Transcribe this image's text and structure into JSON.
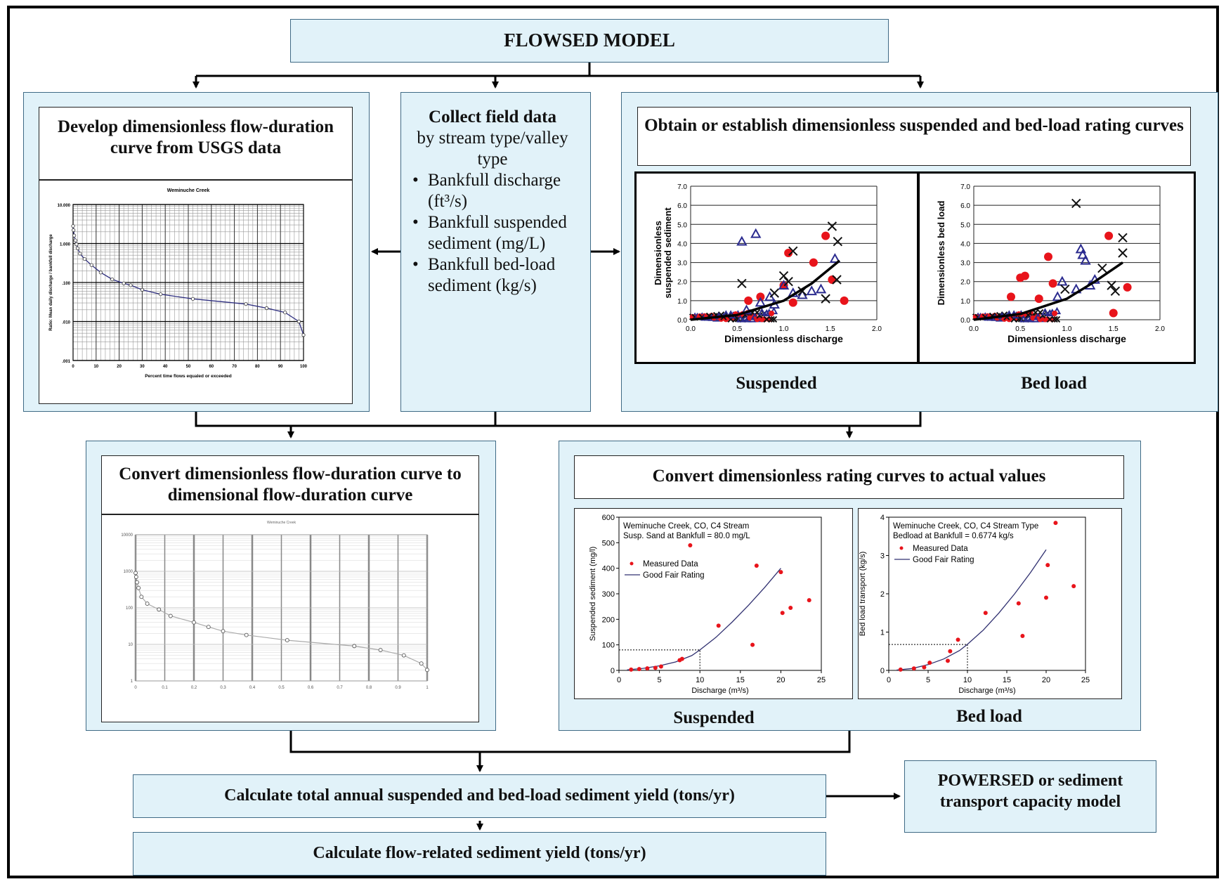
{
  "model_title": "FLOWSED MODEL",
  "flow_box": {
    "title": "Develop dimensionless flow-duration curve from USGS data"
  },
  "collect_box": {
    "heading": "Collect field data",
    "subheading": "by stream type/valley type",
    "items": [
      "Bankfull discharge (ft³/s)",
      "Bankfull suspended sediment (mg/L)",
      "Bankfull bed-load sediment (kg/s)"
    ]
  },
  "rating_box": {
    "title": "Obtain or establish dimensionless suspended and bed-load rating curves"
  },
  "convert_flow_box": {
    "title": "Convert dimensionless flow-duration curve to dimensional flow-duration curve"
  },
  "convert_rating_box": {
    "title": "Convert dimensionless rating curves to actual values"
  },
  "labels": {
    "suspended": "Suspended",
    "bed_load": "Bed load"
  },
  "calc_total": "Calculate total annual suspended and bed-load sediment yield (tons/yr)",
  "calc_flow": "Calculate flow-related sediment yield (tons/yr)",
  "powersed": "POWERSED or sediment transport capacity model",
  "chart_data": [
    {
      "type": "line",
      "title": "Weminuche Creek",
      "xlabel": "Percent time flows equaled or exceeded",
      "ylabel": "Ratio: Mean daily discharge / bankfull discharge",
      "yscale": "log",
      "ylim": [
        0.001,
        10
      ],
      "xlim": [
        0,
        100
      ],
      "y_tick_labels": [
        "10.000",
        "1.000",
        ".100",
        ".010",
        ".001"
      ],
      "x_tick_labels": [
        "0",
        "10",
        "20",
        "30",
        "40",
        "50",
        "60",
        "70",
        "80",
        "90",
        "100"
      ],
      "x": [
        0,
        0.2,
        0.5,
        1,
        1.5,
        2,
        3,
        5,
        8,
        12,
        17,
        22,
        25,
        30,
        38,
        52,
        75,
        84,
        92,
        98,
        100
      ],
      "y": [
        2.8,
        2.2,
        1.6,
        1.2,
        0.95,
        0.75,
        0.55,
        0.4,
        0.28,
        0.18,
        0.12,
        0.095,
        0.085,
        0.065,
        0.05,
        0.038,
        0.028,
        0.022,
        0.017,
        0.01,
        0.0045
      ]
    },
    {
      "type": "scatter",
      "xlabel": "Dimensionless discharge",
      "ylabel": "Dimensionless suspended sediment",
      "xlim": [
        0,
        2
      ],
      "ylim": [
        0,
        7
      ],
      "x_tick_labels": [
        "0.0",
        "0.5",
        "1.0",
        "1.5",
        "2.0"
      ],
      "y_tick_labels": [
        "0.0",
        "1.0",
        "2.0",
        "3.0",
        "4.0",
        "5.0",
        "6.0",
        "7.0"
      ],
      "series": [
        {
          "marker": "circle",
          "color": "#e8141b",
          "x": [
            1.05,
            1.32,
            1.45,
            1.52,
            1.65,
            0.62,
            0.75,
            1.0,
            1.1
          ],
          "y": [
            3.5,
            3.0,
            4.4,
            2.1,
            1.0,
            1.0,
            1.2,
            1.8,
            0.9
          ]
        },
        {
          "marker": "triangle",
          "color": "#2b2b8f",
          "x": [
            0.55,
            0.7,
            1.0,
            1.1,
            0.85,
            0.9,
            1.2,
            1.3,
            1.55,
            0.6,
            0.75,
            1.4
          ],
          "y": [
            4.1,
            4.5,
            1.8,
            1.4,
            1.2,
            0.8,
            1.3,
            1.5,
            3.2,
            0.5,
            0.9,
            1.6
          ]
        },
        {
          "marker": "x",
          "color": "#111111",
          "x": [
            1.1,
            1.52,
            1.58,
            1.57,
            1.45,
            0.55,
            1.0,
            0.9,
            1.05,
            1.2
          ],
          "y": [
            3.6,
            4.9,
            4.1,
            2.1,
            1.1,
            1.9,
            2.3,
            1.4,
            2.0,
            1.5
          ]
        }
      ],
      "fit": {
        "x": [
          0,
          0.5,
          1.0,
          1.3,
          1.6
        ],
        "y": [
          0.0,
          0.25,
          1.0,
          1.9,
          3.1
        ]
      }
    },
    {
      "type": "scatter",
      "xlabel": "Dimensionless discharge",
      "ylabel": "Dimensionless bed load",
      "xlim": [
        0,
        2
      ],
      "ylim": [
        0,
        7
      ],
      "x_tick_labels": [
        "0.0",
        "0.5",
        "1.0",
        "1.5",
        "2.0"
      ],
      "y_tick_labels": [
        "0.0",
        "1.0",
        "2.0",
        "3.0",
        "4.0",
        "5.0",
        "6.0",
        "7.0"
      ],
      "series": [
        {
          "marker": "circle",
          "color": "#e8141b",
          "x": [
            0.5,
            0.55,
            0.8,
            0.85,
            1.45,
            1.65,
            1.5,
            0.4,
            0.7
          ],
          "y": [
            2.2,
            2.3,
            3.3,
            1.9,
            4.4,
            1.7,
            0.35,
            1.2,
            1.1
          ]
        },
        {
          "marker": "triangle",
          "color": "#2b2b8f",
          "x": [
            1.15,
            1.17,
            1.2,
            0.95,
            1.1,
            1.25,
            0.9,
            1.3
          ],
          "y": [
            3.7,
            3.4,
            3.1,
            2.0,
            1.6,
            1.8,
            1.2,
            2.1
          ]
        },
        {
          "marker": "x",
          "color": "#111111",
          "x": [
            1.1,
            1.6,
            1.6,
            1.38,
            1.52,
            1.48,
            0.98
          ],
          "y": [
            6.1,
            4.3,
            3.5,
            2.7,
            1.5,
            1.8,
            1.6
          ]
        }
      ],
      "fit": {
        "x": [
          0,
          0.5,
          1.0,
          1.3,
          1.6
        ],
        "y": [
          0.0,
          0.3,
          1.1,
          2.0,
          3.0
        ]
      }
    },
    {
      "type": "line",
      "title": "Weminuche Creek",
      "yscale": "log",
      "ylim": [
        1,
        10000
      ],
      "xlim": [
        0,
        1
      ],
      "y_tick_labels": [
        "10000",
        "1000",
        "100",
        "10",
        "1"
      ],
      "x_tick_labels": [
        "0",
        "0.1",
        "0.2",
        "0.3",
        "0.4",
        "0.5",
        "0.6",
        "0.7",
        "0.8",
        "0.9",
        "1"
      ],
      "x": [
        0,
        0.002,
        0.005,
        0.01,
        0.02,
        0.04,
        0.08,
        0.12,
        0.2,
        0.25,
        0.3,
        0.38,
        0.52,
        0.75,
        0.84,
        0.92,
        0.98,
        1.0
      ],
      "y": [
        900,
        700,
        500,
        350,
        200,
        130,
        90,
        60,
        40,
        30,
        23,
        18,
        13,
        9,
        7,
        5,
        3,
        2
      ]
    },
    {
      "type": "scatter",
      "title": "Weminuche Creek, CO, C4 Stream",
      "subtitle": "Susp. Sand at Bankfull = 80.0 mg/L",
      "xlabel": "Discharge (m³/s)",
      "ylabel": "Suspended sediment  (mg/l)",
      "xlim": [
        0,
        25
      ],
      "ylim": [
        0,
        600
      ],
      "x_tick_labels": [
        "0",
        "5",
        "10",
        "15",
        "20",
        "25"
      ],
      "y_tick_labels": [
        "0",
        "100",
        "200",
        "300",
        "400",
        "500",
        "600"
      ],
      "legend": [
        "Measured Data",
        "Good  Fair Rating"
      ],
      "series": [
        {
          "name": "Measured Data",
          "color": "#e8141b",
          "x": [
            1.5,
            2.5,
            3.5,
            4.5,
            5.2,
            7.5,
            7.8,
            8.8,
            12.3,
            16.5,
            17.0,
            20.0,
            20.2,
            21.2,
            23.5
          ],
          "y": [
            3,
            5,
            8,
            10,
            15,
            40,
            45,
            490,
            175,
            100,
            410,
            385,
            225,
            245,
            275
          ]
        },
        {
          "name": "Good  Fair Rating",
          "color": "#303070",
          "x": [
            1,
            3,
            5,
            7,
            9,
            10,
            12,
            14,
            16,
            18,
            20
          ],
          "y": [
            2,
            8,
            18,
            33,
            58,
            80,
            130,
            190,
            255,
            325,
            400
          ]
        }
      ],
      "reference": {
        "x": 10,
        "y": 80
      }
    },
    {
      "type": "scatter",
      "title": "Weminuche Creek, CO, C4 Stream Type",
      "subtitle": "Bedload at Bankfull = 0.6774 kg/s",
      "xlabel": "Discharge (m³/s)",
      "ylabel": "Bed load transport (kg/s)",
      "xlim": [
        0,
        25
      ],
      "ylim": [
        0,
        4
      ],
      "x_tick_labels": [
        "0",
        "5",
        "10",
        "15",
        "20",
        "25"
      ],
      "y_tick_labels": [
        "0",
        "1",
        "2",
        "3",
        "4"
      ],
      "legend": [
        "Measured Data",
        "Good Fair Rating"
      ],
      "series": [
        {
          "name": "Measured Data",
          "color": "#e8141b",
          "x": [
            1.5,
            3.2,
            4.5,
            5.2,
            7.5,
            7.8,
            8.8,
            12.3,
            16.5,
            17.0,
            20.0,
            20.2,
            21.2,
            23.5
          ],
          "y": [
            0.02,
            0.05,
            0.08,
            0.2,
            0.25,
            0.5,
            0.8,
            1.5,
            1.75,
            0.9,
            1.9,
            2.75,
            3.85,
            2.2
          ]
        },
        {
          "name": "Good Fair Rating",
          "color": "#303070",
          "x": [
            1,
            3,
            5,
            7,
            9,
            10,
            12,
            14,
            16,
            18,
            20
          ],
          "y": [
            0.01,
            0.05,
            0.15,
            0.3,
            0.52,
            0.68,
            1.05,
            1.5,
            2.0,
            2.55,
            3.15
          ]
        }
      ],
      "reference": {
        "x": 10,
        "y": 0.6774
      }
    }
  ]
}
